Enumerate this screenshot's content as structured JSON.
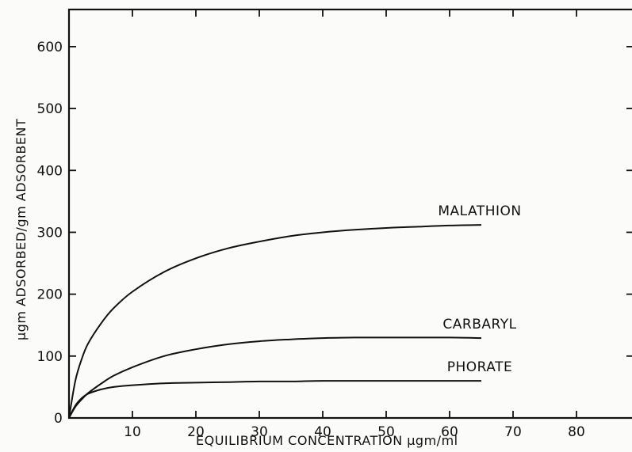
{
  "chart_data": {
    "type": "line",
    "title": "",
    "xlabel": "EQUILIBRIUM CONCENTRATION µgm/ml",
    "ylabel": "µgm ADSORBED/gm ADSORBENT",
    "xlim": [
      0,
      89
    ],
    "ylim": [
      0,
      660
    ],
    "xticks": [
      10,
      20,
      30,
      40,
      50,
      60,
      70,
      80
    ],
    "xtick_labels": [
      "10",
      "20",
      "30",
      "40",
      "50",
      "60",
      "70",
      "80"
    ],
    "origin_label": "0",
    "yticks": [
      100,
      200,
      300,
      400,
      500,
      600
    ],
    "ytick_labels": [
      "100",
      "200",
      "300",
      "400",
      "500",
      "600"
    ],
    "grid": false,
    "series": [
      {
        "name": "MALATHION",
        "x": [
          0,
          1,
          2,
          3,
          5,
          7,
          10,
          15,
          20,
          25,
          30,
          35,
          40,
          45,
          50,
          55,
          60,
          65
        ],
        "y": [
          0,
          60,
          95,
          120,
          152,
          177,
          204,
          236,
          258,
          274,
          285,
          294,
          300,
          304,
          307,
          309,
          311,
          312
        ]
      },
      {
        "name": "CARBARYL",
        "x": [
          0,
          1,
          2,
          3,
          5,
          7,
          10,
          15,
          20,
          25,
          30,
          35,
          40,
          45,
          50,
          55,
          60,
          65
        ],
        "y": [
          0,
          18,
          30,
          40,
          55,
          68,
          82,
          100,
          111,
          119,
          124,
          127,
          129,
          130,
          130,
          130,
          130,
          129
        ]
      },
      {
        "name": "PHORATE",
        "x": [
          0,
          1,
          2,
          3,
          5,
          7,
          10,
          15,
          20,
          25,
          30,
          35,
          40,
          45,
          50,
          55,
          60,
          65
        ],
        "y": [
          0,
          20,
          32,
          39,
          46,
          50,
          53,
          56,
          57,
          58,
          59,
          59,
          60,
          60,
          60,
          60,
          60,
          60
        ]
      }
    ]
  }
}
